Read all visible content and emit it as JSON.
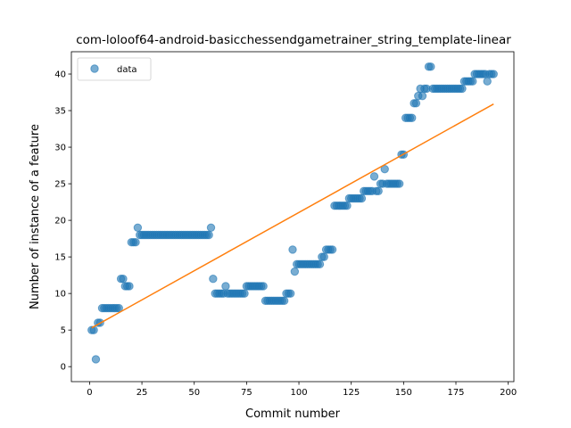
{
  "chart_data": {
    "type": "scatter",
    "title": "com-loloof64-android-basicchessendgametrainer_string_template-linear",
    "xlabel": "Commit number",
    "ylabel": "Number of instance of a feature",
    "xlim": [
      -8.7,
      202.7
    ],
    "ylim": [
      -2.05,
      43.05
    ],
    "xticks": [
      0,
      25,
      50,
      75,
      100,
      125,
      150,
      175,
      200
    ],
    "yticks": [
      0,
      5,
      10,
      15,
      20,
      25,
      30,
      35,
      40
    ],
    "legend": {
      "position": "top-left",
      "entries": [
        "data"
      ]
    },
    "colors": {
      "points": "#1f77b4",
      "trend": "#ff7f0e"
    },
    "series": [
      {
        "name": "data",
        "kind": "scatter",
        "points": [
          [
            1,
            5
          ],
          [
            2,
            5
          ],
          [
            3,
            1
          ],
          [
            4,
            6
          ],
          [
            5,
            6
          ],
          [
            6,
            8
          ],
          [
            7,
            8
          ],
          [
            8,
            8
          ],
          [
            9,
            8
          ],
          [
            10,
            8
          ],
          [
            11,
            8
          ],
          [
            12,
            8
          ],
          [
            13,
            8
          ],
          [
            14,
            8
          ],
          [
            15,
            12
          ],
          [
            16,
            12
          ],
          [
            17,
            11
          ],
          [
            18,
            11
          ],
          [
            19,
            11
          ],
          [
            20,
            17
          ],
          [
            21,
            17
          ],
          [
            22,
            17
          ],
          [
            23,
            19
          ],
          [
            24,
            18
          ],
          [
            25,
            18
          ],
          [
            26,
            18
          ],
          [
            27,
            18
          ],
          [
            28,
            18
          ],
          [
            29,
            18
          ],
          [
            30,
            18
          ],
          [
            31,
            18
          ],
          [
            32,
            18
          ],
          [
            33,
            18
          ],
          [
            34,
            18
          ],
          [
            35,
            18
          ],
          [
            36,
            18
          ],
          [
            37,
            18
          ],
          [
            38,
            18
          ],
          [
            39,
            18
          ],
          [
            40,
            18
          ],
          [
            41,
            18
          ],
          [
            42,
            18
          ],
          [
            43,
            18
          ],
          [
            44,
            18
          ],
          [
            45,
            18
          ],
          [
            46,
            18
          ],
          [
            47,
            18
          ],
          [
            48,
            18
          ],
          [
            49,
            18
          ],
          [
            50,
            18
          ],
          [
            51,
            18
          ],
          [
            52,
            18
          ],
          [
            53,
            18
          ],
          [
            54,
            18
          ],
          [
            55,
            18
          ],
          [
            56,
            18
          ],
          [
            57,
            18
          ],
          [
            58,
            19
          ],
          [
            59,
            12
          ],
          [
            60,
            10
          ],
          [
            61,
            10
          ],
          [
            62,
            10
          ],
          [
            63,
            10
          ],
          [
            64,
            10
          ],
          [
            65,
            11
          ],
          [
            66,
            10
          ],
          [
            67,
            10
          ],
          [
            68,
            10
          ],
          [
            69,
            10
          ],
          [
            70,
            10
          ],
          [
            71,
            10
          ],
          [
            72,
            10
          ],
          [
            73,
            10
          ],
          [
            74,
            10
          ],
          [
            75,
            11
          ],
          [
            76,
            11
          ],
          [
            77,
            11
          ],
          [
            78,
            11
          ],
          [
            79,
            11
          ],
          [
            80,
            11
          ],
          [
            81,
            11
          ],
          [
            82,
            11
          ],
          [
            83,
            11
          ],
          [
            84,
            9
          ],
          [
            85,
            9
          ],
          [
            86,
            9
          ],
          [
            87,
            9
          ],
          [
            88,
            9
          ],
          [
            89,
            9
          ],
          [
            90,
            9
          ],
          [
            91,
            9
          ],
          [
            92,
            9
          ],
          [
            93,
            9
          ],
          [
            94,
            10
          ],
          [
            95,
            10
          ],
          [
            96,
            10
          ],
          [
            97,
            16
          ],
          [
            98,
            13
          ],
          [
            99,
            14
          ],
          [
            100,
            14
          ],
          [
            101,
            14
          ],
          [
            102,
            14
          ],
          [
            103,
            14
          ],
          [
            104,
            14
          ],
          [
            105,
            14
          ],
          [
            106,
            14
          ],
          [
            107,
            14
          ],
          [
            108,
            14
          ],
          [
            109,
            14
          ],
          [
            110,
            14
          ],
          [
            111,
            15
          ],
          [
            112,
            15
          ],
          [
            113,
            16
          ],
          [
            114,
            16
          ],
          [
            115,
            16
          ],
          [
            116,
            16
          ],
          [
            117,
            22
          ],
          [
            118,
            22
          ],
          [
            119,
            22
          ],
          [
            120,
            22
          ],
          [
            121,
            22
          ],
          [
            122,
            22
          ],
          [
            123,
            22
          ],
          [
            124,
            23
          ],
          [
            125,
            23
          ],
          [
            126,
            23
          ],
          [
            127,
            23
          ],
          [
            128,
            23
          ],
          [
            129,
            23
          ],
          [
            130,
            23
          ],
          [
            131,
            24
          ],
          [
            132,
            24
          ],
          [
            133,
            24
          ],
          [
            134,
            24
          ],
          [
            135,
            24
          ],
          [
            136,
            26
          ],
          [
            137,
            24
          ],
          [
            138,
            24
          ],
          [
            139,
            25
          ],
          [
            140,
            25
          ],
          [
            141,
            27
          ],
          [
            142,
            25
          ],
          [
            143,
            25
          ],
          [
            144,
            25
          ],
          [
            145,
            25
          ],
          [
            146,
            25
          ],
          [
            147,
            25
          ],
          [
            148,
            25
          ],
          [
            149,
            29
          ],
          [
            150,
            29
          ],
          [
            151,
            34
          ],
          [
            152,
            34
          ],
          [
            153,
            34
          ],
          [
            154,
            34
          ],
          [
            155,
            36
          ],
          [
            156,
            36
          ],
          [
            157,
            37
          ],
          [
            158,
            38
          ],
          [
            159,
            37
          ],
          [
            160,
            38
          ],
          [
            161,
            38
          ],
          [
            162,
            41
          ],
          [
            163,
            41
          ],
          [
            164,
            38
          ],
          [
            165,
            38
          ],
          [
            166,
            38
          ],
          [
            167,
            38
          ],
          [
            168,
            38
          ],
          [
            169,
            38
          ],
          [
            170,
            38
          ],
          [
            171,
            38
          ],
          [
            172,
            38
          ],
          [
            173,
            38
          ],
          [
            174,
            38
          ],
          [
            175,
            38
          ],
          [
            176,
            38
          ],
          [
            177,
            38
          ],
          [
            178,
            38
          ],
          [
            179,
            39
          ],
          [
            180,
            39
          ],
          [
            181,
            39
          ],
          [
            182,
            39
          ],
          [
            183,
            39
          ],
          [
            184,
            40
          ],
          [
            185,
            40
          ],
          [
            186,
            40
          ],
          [
            187,
            40
          ],
          [
            188,
            40
          ],
          [
            189,
            40
          ],
          [
            190,
            39
          ],
          [
            191,
            40
          ],
          [
            192,
            40
          ],
          [
            193,
            40
          ]
        ]
      },
      {
        "kind": "line",
        "points": [
          [
            1,
            5.3
          ],
          [
            193,
            35.9
          ]
        ]
      }
    ]
  }
}
